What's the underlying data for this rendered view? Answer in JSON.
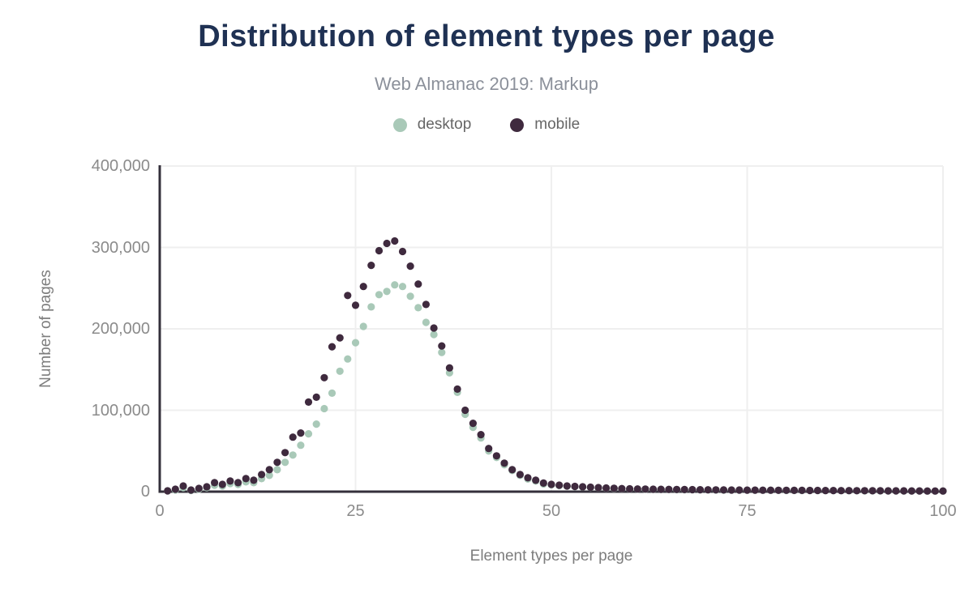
{
  "figure": {
    "title": "Distribution of element types per page",
    "subtitle": "Web Almanac 2019: Markup"
  },
  "legend": [
    {
      "label": "desktop",
      "color": "#A9C9B8"
    },
    {
      "label": "mobile",
      "color": "#3F2A3E"
    }
  ],
  "axes": {
    "x": {
      "label": "Element types per page",
      "ticks": [
        "0",
        "25",
        "50",
        "75",
        "100"
      ],
      "tick_values": [
        0,
        25,
        50,
        75,
        100
      ]
    },
    "y": {
      "label": "Number of pages",
      "ticks": [
        "0",
        "100,000",
        "200,000",
        "300,000",
        "400,000"
      ],
      "tick_values": [
        0,
        100000,
        200000,
        300000,
        400000
      ]
    }
  },
  "colors": {
    "axis_line": "#34303B",
    "gridline": "#EFEFEF",
    "title": "#1F3153"
  },
  "chart_data": {
    "type": "scatter",
    "title": "Distribution of element types per page",
    "subtitle": "Web Almanac 2019: Markup",
    "xlabel": "Element types per page",
    "ylabel": "Number of pages",
    "xlim": [
      0,
      100
    ],
    "ylim": [
      0,
      400000
    ],
    "grid": true,
    "legend_position": "top",
    "x": [
      1,
      2,
      3,
      4,
      5,
      6,
      7,
      8,
      9,
      10,
      11,
      12,
      13,
      14,
      15,
      16,
      17,
      18,
      19,
      20,
      21,
      22,
      23,
      24,
      25,
      26,
      27,
      28,
      29,
      30,
      31,
      32,
      33,
      34,
      35,
      36,
      37,
      38,
      39,
      40,
      41,
      42,
      43,
      44,
      45,
      46,
      47,
      48,
      49,
      50,
      51,
      52,
      53,
      54,
      55,
      56,
      57,
      58,
      59,
      60,
      61,
      62,
      63,
      64,
      65,
      66,
      67,
      68,
      69,
      70,
      71,
      72,
      73,
      74,
      75,
      76,
      77,
      78,
      79,
      80,
      81,
      82,
      83,
      84,
      85,
      86,
      87,
      88,
      89,
      90,
      91,
      92,
      93,
      94,
      95,
      96,
      97,
      98,
      99,
      100
    ],
    "series": [
      {
        "name": "desktop",
        "color": "#A9C9B8",
        "values": [
          1000,
          2000,
          5000,
          1500,
          3000,
          5000,
          8000,
          7000,
          10000,
          9000,
          12000,
          11000,
          16000,
          20000,
          27000,
          36000,
          45000,
          57000,
          71000,
          83000,
          102000,
          121000,
          148000,
          163000,
          183000,
          203000,
          227000,
          242000,
          246000,
          254000,
          252000,
          240000,
          226000,
          208000,
          193000,
          171000,
          146000,
          122000,
          95000,
          79000,
          66000,
          50000,
          42000,
          33000,
          26000,
          20000,
          15500,
          13000,
          9500,
          8500,
          7500,
          6800,
          6200,
          5700,
          5200,
          4800,
          4300,
          4000,
          3600,
          3300,
          3100,
          3000,
          2800,
          2700,
          2600,
          2500,
          2400,
          2300,
          2200,
          2100,
          2000,
          1900,
          1900,
          1800,
          1800,
          1700,
          1700,
          1600,
          1600,
          1500,
          1500,
          1400,
          1400,
          1300,
          1300,
          1200,
          1200,
          1100,
          1100,
          1000,
          1000,
          900,
          900,
          900,
          800,
          800,
          800,
          700,
          700,
          700
        ]
      },
      {
        "name": "mobile",
        "color": "#3F2A3E",
        "values": [
          1000,
          3000,
          7000,
          2000,
          4000,
          6000,
          11000,
          9000,
          13000,
          11000,
          16000,
          14000,
          21000,
          27000,
          36000,
          48000,
          67000,
          72000,
          110000,
          116000,
          140000,
          178000,
          189000,
          241000,
          229000,
          252000,
          278000,
          296000,
          305000,
          308000,
          295000,
          277000,
          255000,
          230000,
          201000,
          179000,
          152000,
          126000,
          100000,
          84000,
          70000,
          53000,
          44000,
          35000,
          27000,
          21000,
          17000,
          14000,
          10500,
          9000,
          8000,
          7000,
          6500,
          6000,
          5500,
          5000,
          4500,
          4200,
          3800,
          3500,
          3300,
          3200,
          3000,
          2900,
          2800,
          2700,
          2600,
          2500,
          2400,
          2300,
          2200,
          2100,
          2000,
          2000,
          1900,
          1900,
          1800,
          1800,
          1700,
          1700,
          1600,
          1600,
          1500,
          1500,
          1400,
          1400,
          1300,
          1300,
          1200,
          1200,
          1100,
          1100,
          1000,
          1000,
          1000,
          900,
          900,
          800,
          800,
          800
        ]
      }
    ]
  }
}
